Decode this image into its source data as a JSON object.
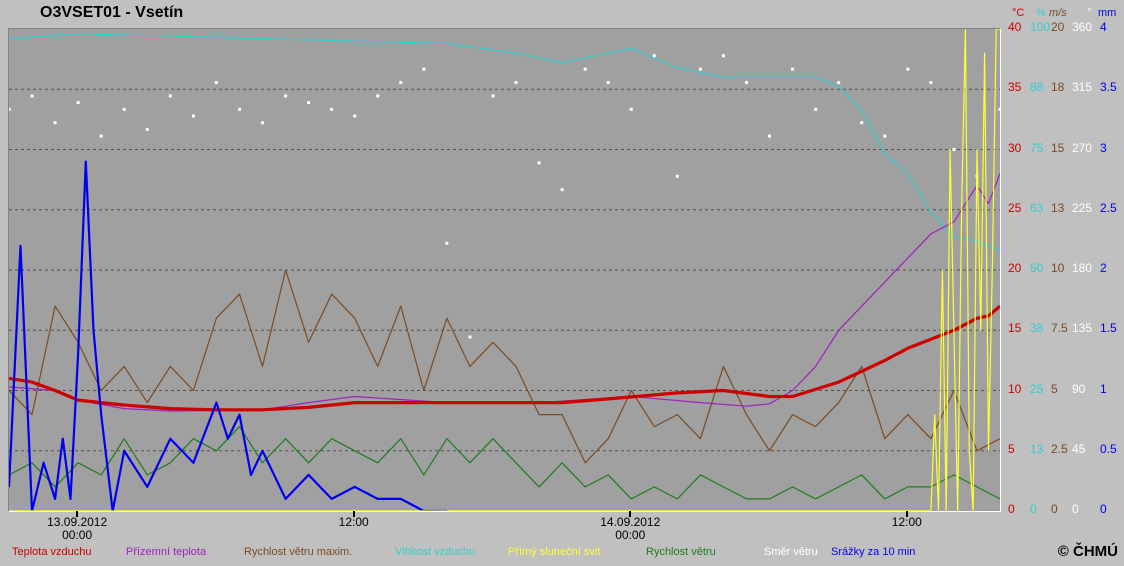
{
  "title": "O3VSET01 - Vsetín",
  "copyright": "© ČHMÚ",
  "colors": {
    "temperature": "#cc0000",
    "ground_temperature": "#a020c0",
    "wind_gust": "#7a4a22",
    "humidity": "#33cccc",
    "sunshine": "#ffff33",
    "wind_speed": "#1f7a1f",
    "wind_direction": "#ffffff",
    "precipitation": "#0000ee",
    "plot_background": "#a0a0a0",
    "grid": "#505050"
  },
  "axes_units": {
    "temp": "°C",
    "humidity": "%",
    "wind": "m/s",
    "direction": "°",
    "precip": "mm"
  },
  "chart_data": {
    "type": "line",
    "title": "O3VSET01 - Vsetín",
    "x_range": [
      "2012-09-12T21:00",
      "2012-09-14T16:00"
    ],
    "x_ticks": [
      {
        "label": "13.09.2012\n00:00",
        "time": "2012-09-13T00:00"
      },
      {
        "label": "12:00",
        "time": "2012-09-13T12:00"
      },
      {
        "label": "14.09.2012\n00:00",
        "time": "2012-09-14T00:00"
      },
      {
        "label": "12:00",
        "time": "2012-09-14T12:00"
      }
    ],
    "y_axes": {
      "temp": {
        "range": [
          0,
          40
        ],
        "ticks": [
          "0",
          "5",
          "10",
          "15",
          "20",
          "25",
          "30",
          "35",
          "40"
        ]
      },
      "humidity": {
        "range": [
          0,
          100
        ],
        "ticks": [
          "0",
          "13",
          "25",
          "38",
          "50",
          "63",
          "75",
          "88",
          "100"
        ]
      },
      "wind": {
        "range": [
          0,
          20
        ],
        "ticks": [
          "0",
          "2.5",
          "5",
          "7.5",
          "10",
          "13",
          "15",
          "18",
          "20"
        ]
      },
      "direction": {
        "range": [
          0,
          360
        ],
        "ticks": [
          "0",
          "45",
          "90",
          "135",
          "180",
          "225",
          "270",
          "315",
          "360"
        ]
      },
      "precip": {
        "range": [
          0,
          4
        ],
        "ticks": [
          "0",
          "0.5",
          "1",
          "1.5",
          "2",
          "2.5",
          "3",
          "3.5",
          "4"
        ]
      }
    },
    "grid": true,
    "legend_placement": "bottom",
    "series": [
      {
        "name": "Teplota vzduchu",
        "key": "temperature",
        "axis": "temp",
        "x": [
          "2012-09-12T21:00",
          "2012-09-12T22:00",
          "2012-09-12T23:00",
          "2012-09-13T00:00",
          "2012-09-13T01:00",
          "2012-09-13T02:00",
          "2012-09-13T04:00",
          "2012-09-13T06:00",
          "2012-09-13T08:00",
          "2012-09-13T10:00",
          "2012-09-13T12:00",
          "2012-09-13T15:00",
          "2012-09-13T18:00",
          "2012-09-13T21:00",
          "2012-09-13T23:00",
          "2012-09-14T02:00",
          "2012-09-14T04:00",
          "2012-09-14T06:00",
          "2012-09-14T07:00",
          "2012-09-14T09:00",
          "2012-09-14T11:00",
          "2012-09-14T12:00",
          "2012-09-14T14:00",
          "2012-09-14T15:00",
          "2012-09-14T15:30",
          "2012-09-14T16:00"
        ],
        "y": [
          11,
          10.7,
          10,
          9.2,
          9,
          8.8,
          8.5,
          8.4,
          8.4,
          8.6,
          9,
          9,
          9,
          9,
          9.3,
          9.8,
          10,
          9.5,
          9.5,
          10.7,
          12.5,
          13.5,
          15,
          16,
          16.2,
          17
        ]
      },
      {
        "name": "Přízemní teplota",
        "key": "ground_temperature",
        "axis": "temp",
        "x": [
          "2012-09-12T21:00",
          "2012-09-12T23:00",
          "2012-09-13T00:00",
          "2012-09-13T02:00",
          "2012-09-13T04:00",
          "2012-09-13T08:00",
          "2012-09-13T10:00",
          "2012-09-13T12:00",
          "2012-09-13T16:00",
          "2012-09-13T20:00",
          "2012-09-14T00:00",
          "2012-09-14T03:00",
          "2012-09-14T05:00",
          "2012-09-14T06:00",
          "2012-09-14T07:00",
          "2012-09-14T08:00",
          "2012-09-14T09:00",
          "2012-09-14T10:00",
          "2012-09-14T11:00",
          "2012-09-14T12:00",
          "2012-09-14T13:00",
          "2012-09-14T14:00",
          "2012-09-14T15:00",
          "2012-09-14T15:30",
          "2012-09-14T16:00"
        ],
        "y": [
          10.3,
          10,
          9.2,
          8.5,
          8.3,
          8.4,
          9,
          9.5,
          9,
          9,
          9.5,
          9,
          8.7,
          8.9,
          10,
          12,
          15,
          17,
          19,
          21,
          23,
          24,
          27,
          25.5,
          28
        ]
      },
      {
        "name": "Rychlost větru maxim.",
        "key": "wind_gust",
        "axis": "wind",
        "x": [
          "2012-09-12T21:00",
          "2012-09-12T22:00",
          "2012-09-12T23:00",
          "2012-09-13T00:00",
          "2012-09-13T01:00",
          "2012-09-13T02:00",
          "2012-09-13T03:00",
          "2012-09-13T04:00",
          "2012-09-13T05:00",
          "2012-09-13T06:00",
          "2012-09-13T07:00",
          "2012-09-13T08:00",
          "2012-09-13T09:00",
          "2012-09-13T10:00",
          "2012-09-13T11:00",
          "2012-09-13T12:00",
          "2012-09-13T13:00",
          "2012-09-13T14:00",
          "2012-09-13T15:00",
          "2012-09-13T16:00",
          "2012-09-13T17:00",
          "2012-09-13T18:00",
          "2012-09-13T19:00",
          "2012-09-13T20:00",
          "2012-09-13T21:00",
          "2012-09-13T22:00",
          "2012-09-13T23:00",
          "2012-09-14T00:00",
          "2012-09-14T01:00",
          "2012-09-14T02:00",
          "2012-09-14T03:00",
          "2012-09-14T04:00",
          "2012-09-14T05:00",
          "2012-09-14T06:00",
          "2012-09-14T07:00",
          "2012-09-14T08:00",
          "2012-09-14T09:00",
          "2012-09-14T10:00",
          "2012-09-14T11:00",
          "2012-09-14T12:00",
          "2012-09-14T13:00",
          "2012-09-14T14:00",
          "2012-09-14T15:00",
          "2012-09-14T16:00"
        ],
        "y": [
          5,
          4,
          8.5,
          7,
          5,
          6,
          4.5,
          6,
          5,
          8,
          9,
          6,
          10,
          7,
          9,
          8,
          6,
          8.5,
          5,
          8,
          6,
          7,
          6,
          4,
          4,
          2,
          3,
          5,
          3.5,
          4,
          3,
          6,
          4,
          2.5,
          4,
          3.5,
          4.5,
          6,
          3,
          4,
          3,
          5,
          2.5,
          3
        ]
      },
      {
        "name": "Vlhkost vzduchu",
        "key": "humidity",
        "axis": "humidity",
        "x": [
          "2012-09-12T21:00",
          "2012-09-13T00:00",
          "2012-09-13T04:00",
          "2012-09-13T08:00",
          "2012-09-13T12:00",
          "2012-09-13T16:00",
          "2012-09-13T19:00",
          "2012-09-13T21:00",
          "2012-09-13T23:00",
          "2012-09-14T00:00",
          "2012-09-14T02:00",
          "2012-09-14T04:00",
          "2012-09-14T06:00",
          "2012-09-14T08:00",
          "2012-09-14T09:00",
          "2012-09-14T10:00",
          "2012-09-14T11:00",
          "2012-09-14T12:00",
          "2012-09-14T13:00",
          "2012-09-14T14:00",
          "2012-09-14T15:00",
          "2012-09-14T16:00"
        ],
        "y": [
          98,
          99,
          98.5,
          98,
          97.5,
          97,
          95,
          93,
          95,
          96,
          92,
          90,
          90,
          90,
          88,
          83,
          74,
          70,
          62,
          57,
          56,
          54
        ]
      },
      {
        "name": "Přímý sluneční svit",
        "key": "sunshine",
        "axis": "temp",
        "x": [
          "2012-09-12T21:00",
          "2012-09-14T13:00",
          "2012-09-14T13:10",
          "2012-09-14T13:20",
          "2012-09-14T13:30",
          "2012-09-14T13:40",
          "2012-09-14T13:50",
          "2012-09-14T14:00",
          "2012-09-14T14:10",
          "2012-09-14T14:20",
          "2012-09-14T14:30",
          "2012-09-14T14:40",
          "2012-09-14T14:50",
          "2012-09-14T15:00",
          "2012-09-14T15:10",
          "2012-09-14T15:20",
          "2012-09-14T15:30",
          "2012-09-14T15:40",
          "2012-09-14T15:50",
          "2012-09-14T16:00"
        ],
        "y": [
          0,
          0,
          8,
          0,
          20,
          0,
          30,
          15,
          0,
          25,
          40,
          5,
          0,
          30,
          15,
          38,
          5,
          20,
          40,
          40
        ]
      },
      {
        "name": "Rychlost větru",
        "key": "wind_speed",
        "axis": "wind",
        "x": [
          "2012-09-12T21:00",
          "2012-09-12T22:00",
          "2012-09-12T23:00",
          "2012-09-13T00:00",
          "2012-09-13T01:00",
          "2012-09-13T02:00",
          "2012-09-13T03:00",
          "2012-09-13T04:00",
          "2012-09-13T05:00",
          "2012-09-13T06:00",
          "2012-09-13T07:00",
          "2012-09-13T08:00",
          "2012-09-13T09:00",
          "2012-09-13T10:00",
          "2012-09-13T11:00",
          "2012-09-13T12:00",
          "2012-09-13T13:00",
          "2012-09-13T14:00",
          "2012-09-13T15:00",
          "2012-09-13T16:00",
          "2012-09-13T17:00",
          "2012-09-13T18:00",
          "2012-09-13T19:00",
          "2012-09-13T20:00",
          "2012-09-13T21:00",
          "2012-09-13T22:00",
          "2012-09-13T23:00",
          "2012-09-14T00:00",
          "2012-09-14T01:00",
          "2012-09-14T02:00",
          "2012-09-14T03:00",
          "2012-09-14T04:00",
          "2012-09-14T05:00",
          "2012-09-14T06:00",
          "2012-09-14T07:00",
          "2012-09-14T08:00",
          "2012-09-14T09:00",
          "2012-09-14T10:00",
          "2012-09-14T11:00",
          "2012-09-14T12:00",
          "2012-09-14T13:00",
          "2012-09-14T14:00",
          "2012-09-14T15:00",
          "2012-09-14T16:00"
        ],
        "y": [
          1.5,
          2,
          1,
          2,
          1.5,
          3,
          1.5,
          2,
          3,
          2.5,
          3.5,
          2,
          3,
          2,
          3,
          2.5,
          2,
          3,
          1.5,
          3,
          2,
          3,
          2,
          1,
          2,
          1,
          1.5,
          0.5,
          1,
          0.5,
          1.5,
          1,
          0.5,
          0.5,
          1,
          0.5,
          1,
          1.5,
          0.5,
          1,
          1,
          1.5,
          1,
          0.5
        ]
      },
      {
        "name": "Směr větru",
        "key": "wind_direction",
        "axis": "direction",
        "style": "points",
        "x": [
          "2012-09-12T21:00",
          "2012-09-12T22:00",
          "2012-09-12T23:00",
          "2012-09-13T00:00",
          "2012-09-13T01:00",
          "2012-09-13T02:00",
          "2012-09-13T03:00",
          "2012-09-13T04:00",
          "2012-09-13T05:00",
          "2012-09-13T06:00",
          "2012-09-13T07:00",
          "2012-09-13T08:00",
          "2012-09-13T09:00",
          "2012-09-13T10:00",
          "2012-09-13T11:00",
          "2012-09-13T12:00",
          "2012-09-13T13:00",
          "2012-09-13T14:00",
          "2012-09-13T15:00",
          "2012-09-13T16:00",
          "2012-09-13T17:00",
          "2012-09-13T18:00",
          "2012-09-13T19:00",
          "2012-09-13T20:00",
          "2012-09-13T21:00",
          "2012-09-13T22:00",
          "2012-09-13T23:00",
          "2012-09-14T00:00",
          "2012-09-14T01:00",
          "2012-09-14T02:00",
          "2012-09-14T03:00",
          "2012-09-14T04:00",
          "2012-09-14T05:00",
          "2012-09-14T06:00",
          "2012-09-14T07:00",
          "2012-09-14T08:00",
          "2012-09-14T09:00",
          "2012-09-14T10:00",
          "2012-09-14T11:00",
          "2012-09-14T12:00",
          "2012-09-14T13:00",
          "2012-09-14T14:00",
          "2012-09-14T15:00",
          "2012-09-14T16:00"
        ],
        "y": [
          300,
          310,
          290,
          305,
          280,
          300,
          285,
          310,
          295,
          320,
          300,
          290,
          310,
          305,
          300,
          295,
          310,
          320,
          330,
          200,
          130,
          310,
          320,
          260,
          240,
          330,
          320,
          300,
          340,
          250,
          330,
          340,
          320,
          280,
          330,
          300,
          320,
          290,
          280,
          330,
          320,
          270,
          250,
          300
        ]
      },
      {
        "name": "Srážky za 10 min",
        "key": "precipitation",
        "axis": "precip",
        "x": [
          "2012-09-12T21:00",
          "2012-09-12T21:30",
          "2012-09-12T22:00",
          "2012-09-12T22:30",
          "2012-09-12T23:00",
          "2012-09-12T23:20",
          "2012-09-12T23:40",
          "2012-09-13T00:00",
          "2012-09-13T00:20",
          "2012-09-13T00:40",
          "2012-09-13T01:00",
          "2012-09-13T01:30",
          "2012-09-13T02:00",
          "2012-09-13T03:00",
          "2012-09-13T04:00",
          "2012-09-13T05:00",
          "2012-09-13T06:00",
          "2012-09-13T06:30",
          "2012-09-13T07:00",
          "2012-09-13T07:30",
          "2012-09-13T08:00",
          "2012-09-13T09:00",
          "2012-09-13T10:00",
          "2012-09-13T11:00",
          "2012-09-13T12:00",
          "2012-09-13T13:00",
          "2012-09-13T14:00",
          "2012-09-13T15:00",
          "2012-09-13T16:00"
        ],
        "y": [
          0.2,
          2.2,
          0,
          0.4,
          0.1,
          0.6,
          0.1,
          1.3,
          2.9,
          1.5,
          0.8,
          0,
          0.5,
          0.2,
          0.6,
          0.4,
          0.9,
          0.6,
          0.8,
          0.3,
          0.5,
          0.1,
          0.3,
          0.1,
          0.2,
          0.1,
          0.1,
          0,
          0
        ]
      }
    ]
  },
  "legend": [
    {
      "key": "temperature",
      "label": "Teplota vzduchu"
    },
    {
      "key": "ground_temperature",
      "label": "Přízemní teplota"
    },
    {
      "key": "wind_gust",
      "label": "Rychlost větru maxim."
    },
    {
      "key": "humidity",
      "label": "Vlhkost vzduchu"
    },
    {
      "key": "sunshine",
      "label": "Přímý sluneční svit"
    },
    {
      "key": "wind_speed",
      "label": "Rychlost větru"
    },
    {
      "key": "wind_direction",
      "label": "Směr větru"
    },
    {
      "key": "precipitation",
      "label": "Srážky za 10 min"
    }
  ]
}
